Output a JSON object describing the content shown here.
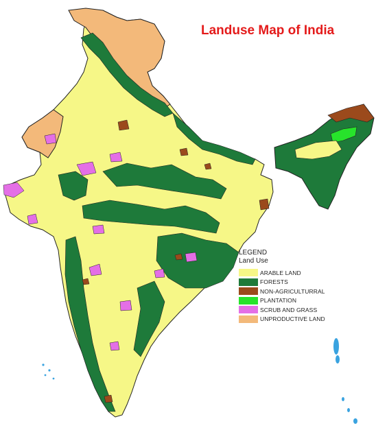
{
  "title": "Landuse Map of India",
  "legend": {
    "heading": "LEGEND",
    "subheading": "Land Use",
    "items": [
      {
        "label": "ARABLE LAND",
        "color": "#f6f787"
      },
      {
        "label": "FORESTS",
        "color": "#1e7a3a"
      },
      {
        "label": "NON-AGRICULTURRAL",
        "color": "#9b4a1c"
      },
      {
        "label": "PLANTATION",
        "color": "#27e32b"
      },
      {
        "label": "SCRUB AND GRASS",
        "color": "#e46fe6"
      },
      {
        "label": "UNPRODUCTIVE LAND",
        "color": "#f3b97a"
      }
    ]
  },
  "colors": {
    "arable": "#f6f787",
    "forest": "#1e7a3a",
    "nonagri": "#9b4a1c",
    "plantation": "#27e32b",
    "scrub": "#e46fe6",
    "unproductive": "#f3b97a",
    "islands": "#3aa3e0",
    "title": "#e41b1b"
  }
}
